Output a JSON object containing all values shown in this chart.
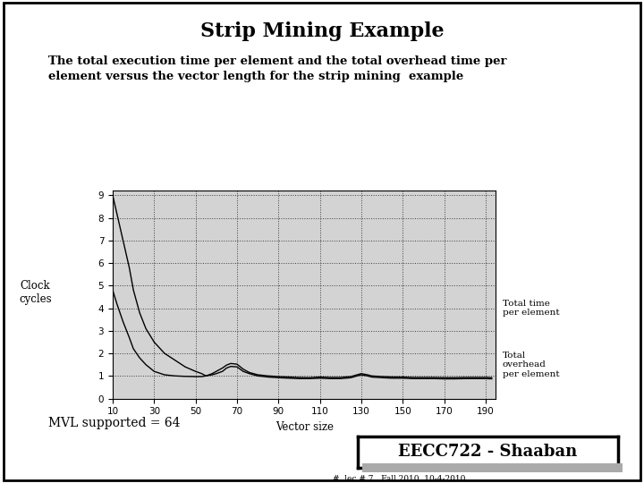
{
  "title": "Strip Mining Example",
  "subtitle": "The total execution time per element and the total overhead time per\nelement versus the vector length for the strip mining  example",
  "xlabel": "Vector size",
  "ylabel": "Clock\ncycles",
  "x_ticks": [
    10,
    30,
    50,
    70,
    90,
    110,
    130,
    150,
    170,
    190
  ],
  "y_ticks": [
    0,
    1,
    2,
    3,
    4,
    5,
    6,
    7,
    8,
    9
  ],
  "xlim": [
    10,
    195
  ],
  "ylim": [
    0,
    9.2
  ],
  "bg_color": "#d3d3d3",
  "outer_bg": "#ffffff",
  "mvl_text": "MVL supported = 64",
  "label1": "Total time\nper element",
  "label2": "Total\noverhead\nper element",
  "footer_box": "EECC722 - Shaaban",
  "footer_sub": "#  lec # 7   Fall 2010  10-4-2010",
  "total_time_x": [
    10,
    12,
    15,
    18,
    20,
    23,
    26,
    30,
    35,
    40,
    45,
    50,
    53,
    55,
    58,
    60,
    63,
    65,
    67,
    70,
    73,
    76,
    80,
    85,
    90,
    95,
    100,
    105,
    110,
    115,
    120,
    125,
    128,
    130,
    133,
    135,
    140,
    145,
    150,
    155,
    160,
    165,
    170,
    175,
    180,
    185,
    190,
    193
  ],
  "total_time_y": [
    9.0,
    8.2,
    7.0,
    5.8,
    4.8,
    3.8,
    3.1,
    2.5,
    2.0,
    1.7,
    1.4,
    1.2,
    1.1,
    1.0,
    1.05,
    1.1,
    1.2,
    1.35,
    1.42,
    1.4,
    1.2,
    1.1,
    1.0,
    0.95,
    0.92,
    0.9,
    0.88,
    0.88,
    0.9,
    0.88,
    0.88,
    0.92,
    1.0,
    1.05,
    1.0,
    0.95,
    0.92,
    0.9,
    0.9,
    0.88,
    0.88,
    0.88,
    0.87,
    0.87,
    0.88,
    0.88,
    0.88,
    0.87
  ],
  "overhead_x": [
    10,
    12,
    15,
    18,
    20,
    23,
    26,
    30,
    35,
    40,
    45,
    50,
    53,
    55,
    58,
    60,
    63,
    65,
    67,
    70,
    73,
    76,
    80,
    85,
    90,
    95,
    100,
    105,
    110,
    115,
    120,
    125,
    128,
    130,
    133,
    135,
    140,
    145,
    150,
    155,
    160,
    165,
    170,
    175,
    180,
    185,
    190,
    193
  ],
  "overhead_y": [
    4.8,
    4.2,
    3.4,
    2.7,
    2.2,
    1.8,
    1.5,
    1.2,
    1.05,
    1.0,
    0.98,
    0.97,
    0.97,
    1.0,
    1.1,
    1.2,
    1.35,
    1.48,
    1.55,
    1.52,
    1.3,
    1.15,
    1.05,
    1.0,
    0.97,
    0.95,
    0.93,
    0.92,
    0.95,
    0.93,
    0.93,
    0.97,
    1.05,
    1.1,
    1.05,
    1.0,
    0.97,
    0.95,
    0.95,
    0.93,
    0.93,
    0.93,
    0.92,
    0.92,
    0.93,
    0.93,
    0.93,
    0.92
  ]
}
